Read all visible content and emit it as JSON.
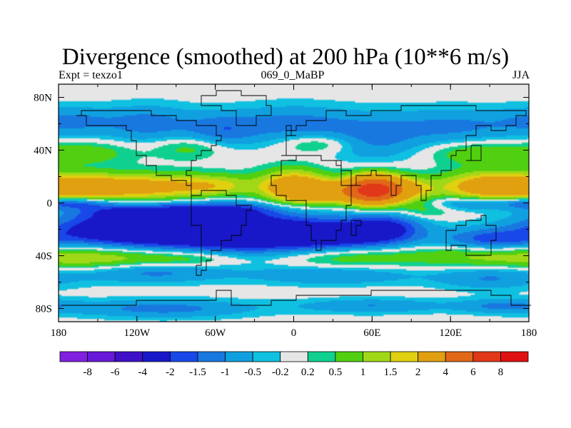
{
  "chart_data": {
    "type": "heatmap",
    "title": "Divergence (smoothed) at 200 hPa (10**6 m/s)",
    "left_string": "Expt = texzo1",
    "center_string": "069_0_MaBP",
    "right_string": "JJA",
    "x_ticks": [
      {
        "value": -180,
        "label": "180"
      },
      {
        "value": -120,
        "label": "120W"
      },
      {
        "value": -60,
        "label": "60W"
      },
      {
        "value": 0,
        "label": "0"
      },
      {
        "value": 60,
        "label": "60E"
      },
      {
        "value": 120,
        "label": "120E"
      },
      {
        "value": 180,
        "label": "180"
      }
    ],
    "y_ticks": [
      {
        "value": 80,
        "label": "80N"
      },
      {
        "value": 40,
        "label": "40N"
      },
      {
        "value": 0,
        "label": "0"
      },
      {
        "value": -40,
        "label": "40S"
      },
      {
        "value": -80,
        "label": "80S"
      }
    ],
    "xlim": [
      -180,
      180
    ],
    "ylim": [
      -90,
      90
    ],
    "colorbar": {
      "labels": [
        "-8",
        "-6",
        "-4",
        "-2",
        "-1.5",
        "-1",
        "-0.5",
        "-0.2",
        "0.2",
        "0.5",
        "1",
        "1.5",
        "2",
        "4",
        "6",
        "8"
      ],
      "colors": [
        "#8020e0",
        "#6818d8",
        "#4010c8",
        "#1818c8",
        "#1848e8",
        "#1878e0",
        "#10a0e0",
        "#10c0e0",
        "#e6e6e6",
        "#10d090",
        "#50d010",
        "#a0d818",
        "#e0d010",
        "#e0a010",
        "#e06818",
        "#e03818",
        "#e01010"
      ]
    },
    "fields": [
      {
        "lon": -160,
        "lat": 12,
        "value": 2.4,
        "rx": 25,
        "ry": 7
      },
      {
        "lon": -110,
        "lat": 12,
        "value": 2.2,
        "rx": 28,
        "ry": 7
      },
      {
        "lon": -60,
        "lat": 13,
        "value": 1.6,
        "rx": 22,
        "ry": 6
      },
      {
        "lon": 0,
        "lat": 12,
        "value": 3.0,
        "rx": 18,
        "ry": 9
      },
      {
        "lon": 30,
        "lat": 8,
        "value": 2.2,
        "rx": 20,
        "ry": 6
      },
      {
        "lon": 60,
        "lat": 10,
        "value": 4.5,
        "rx": 14,
        "ry": 8
      },
      {
        "lon": 75,
        "lat": 10,
        "value": 3.0,
        "rx": 20,
        "ry": 7
      },
      {
        "lon": 150,
        "lat": 12,
        "value": 3.0,
        "rx": 25,
        "ry": 8
      },
      {
        "lon": -170,
        "lat": 0,
        "value": -1.6,
        "rx": 20,
        "ry": 3
      },
      {
        "lon": -130,
        "lat": -6,
        "value": -1.3,
        "rx": 28,
        "ry": 4
      },
      {
        "lon": -60,
        "lat": -5,
        "value": -1.5,
        "rx": 35,
        "ry": 4
      },
      {
        "lon": 140,
        "lat": 0,
        "value": -1.5,
        "rx": 30,
        "ry": 4
      },
      {
        "lon": -130,
        "lat": -20,
        "value": -3.0,
        "rx": 40,
        "ry": 9
      },
      {
        "lon": -50,
        "lat": -22,
        "value": -3.0,
        "rx": 45,
        "ry": 12
      },
      {
        "lon": 30,
        "lat": -25,
        "value": -2.5,
        "rx": 40,
        "ry": 9
      },
      {
        "lon": 70,
        "lat": -18,
        "value": -1.6,
        "rx": 20,
        "ry": 8
      },
      {
        "lon": 150,
        "lat": -28,
        "value": -1.6,
        "rx": 25,
        "ry": 6
      },
      {
        "lon": 100,
        "lat": -5,
        "value": 0.8,
        "rx": 15,
        "ry": 5
      },
      {
        "lon": -150,
        "lat": -42,
        "value": 1.5,
        "rx": 35,
        "ry": 6
      },
      {
        "lon": -80,
        "lat": -42,
        "value": 1.2,
        "rx": 30,
        "ry": 5
      },
      {
        "lon": 40,
        "lat": -40,
        "value": 1.2,
        "rx": 40,
        "ry": 6
      },
      {
        "lon": 140,
        "lat": -40,
        "value": 1.0,
        "rx": 35,
        "ry": 6
      },
      {
        "lon": -110,
        "lat": -52,
        "value": -1.2,
        "rx": 40,
        "ry": 6
      },
      {
        "lon": 30,
        "lat": -55,
        "value": -1.0,
        "rx": 45,
        "ry": 5
      },
      {
        "lon": 150,
        "lat": -57,
        "value": -1.0,
        "rx": 30,
        "ry": 6
      },
      {
        "lon": -170,
        "lat": 62,
        "value": -1.0,
        "rx": 25,
        "ry": 8
      },
      {
        "lon": -110,
        "lat": 60,
        "value": -1.2,
        "rx": 25,
        "ry": 10
      },
      {
        "lon": -55,
        "lat": 55,
        "value": -1.1,
        "rx": 20,
        "ry": 9
      },
      {
        "lon": 0,
        "lat": 60,
        "value": -1.2,
        "rx": 35,
        "ry": 10
      },
      {
        "lon": 60,
        "lat": 48,
        "value": -1.0,
        "rx": 25,
        "ry": 12
      },
      {
        "lon": 120,
        "lat": 58,
        "value": -1.1,
        "rx": 35,
        "ry": 10
      },
      {
        "lon": -160,
        "lat": 38,
        "value": 0.9,
        "rx": 25,
        "ry": 6
      },
      {
        "lon": -80,
        "lat": 42,
        "value": 0.8,
        "rx": 20,
        "ry": 6
      },
      {
        "lon": 20,
        "lat": 45,
        "value": 0.9,
        "rx": 20,
        "ry": 5
      },
      {
        "lon": 140,
        "lat": 38,
        "value": 1.0,
        "rx": 25,
        "ry": 6
      },
      {
        "lon": -100,
        "lat": -80,
        "value": -1.2,
        "rx": 50,
        "ry": 5
      },
      {
        "lon": 60,
        "lat": -78,
        "value": -1.0,
        "rx": 40,
        "ry": 4
      },
      {
        "lon": 160,
        "lat": -78,
        "value": -1.0,
        "rx": 25,
        "ry": 4
      }
    ]
  }
}
